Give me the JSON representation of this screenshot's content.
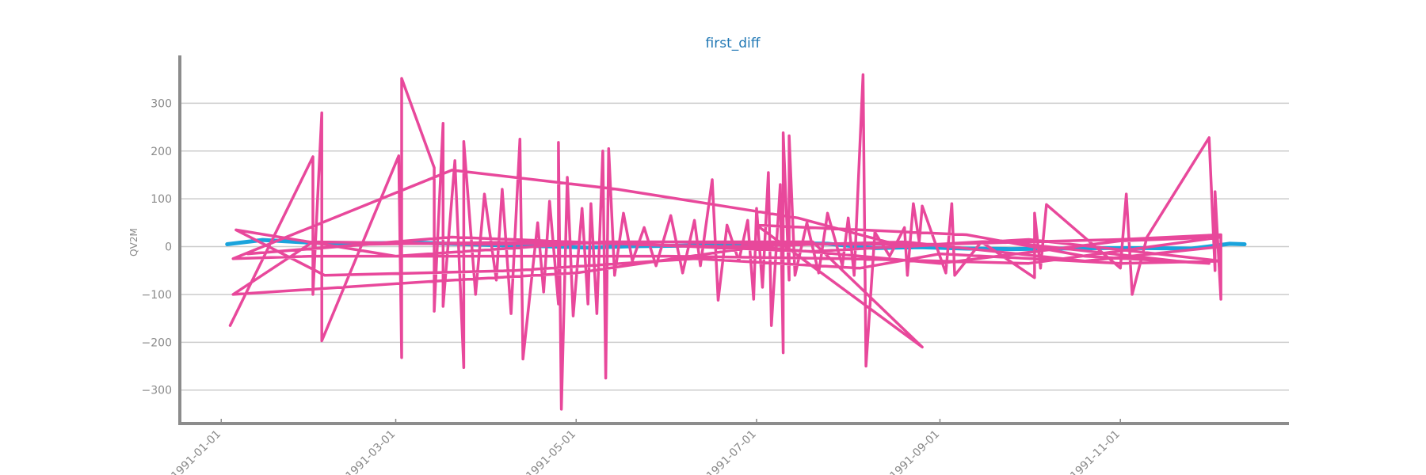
{
  "chart_data": {
    "type": "line",
    "title": "first_diff",
    "xlabel": "",
    "ylabel": "QV2M",
    "x_range": [
      "1990-12-18",
      "1991-12-28"
    ],
    "ylim": [
      -370,
      400
    ],
    "y_ticks": [
      -300,
      -200,
      -100,
      0,
      100,
      200,
      300
    ],
    "y_tick_labels": [
      "−300",
      "−200",
      "−100",
      "0",
      "100",
      "200",
      "300"
    ],
    "x_ticks": [
      "1991-01-01",
      "1991-03-01",
      "1991-05-01",
      "1991-07-01",
      "1991-09-01",
      "1991-11-01"
    ],
    "grid": "horizontal",
    "colors": {
      "title": "#1f77b4",
      "axis": "#8c8c8c",
      "grid": "#cccccc",
      "tick_text": "#8a8a8a"
    },
    "series": [
      {
        "color": "#1aa3dc",
        "width": 5,
        "points": [
          [
            "1991-01-03",
            5
          ],
          [
            "1991-01-15",
            14
          ],
          [
            "1991-02-01",
            8
          ],
          [
            "1991-02-20",
            7
          ],
          [
            "1991-03-10",
            8
          ],
          [
            "1991-03-25",
            5
          ],
          [
            "1991-04-05",
            3
          ],
          [
            "1991-04-20",
            1
          ],
          [
            "1991-05-05",
            -2
          ],
          [
            "1991-05-20",
            1
          ],
          [
            "1991-06-05",
            2
          ],
          [
            "1991-06-20",
            4
          ],
          [
            "1991-07-05",
            8
          ],
          [
            "1991-07-25",
            6
          ],
          [
            "1991-08-10",
            -3
          ],
          [
            "1991-08-25",
            -1
          ],
          [
            "1991-09-10",
            -4
          ],
          [
            "1991-09-25",
            -5
          ],
          [
            "1991-10-10",
            -4
          ],
          [
            "1991-10-25",
            -3
          ],
          [
            "1991-11-10",
            -3
          ],
          [
            "1991-11-25",
            -4
          ],
          [
            "1991-12-08",
            6
          ],
          [
            "1991-12-13",
            5
          ]
        ]
      },
      {
        "color": "#e8489b",
        "width": 3.5,
        "points": [
          [
            "1991-01-04",
            -165
          ],
          [
            "1991-02-01",
            188
          ],
          [
            "1991-02-01",
            -100
          ],
          [
            "1991-02-04",
            280
          ],
          [
            "1991-02-04",
            -197
          ],
          [
            "1991-03-02",
            190
          ],
          [
            "1991-03-03",
            -232
          ],
          [
            "1991-03-03",
            352
          ],
          [
            "1991-03-14",
            165
          ],
          [
            "1991-03-14",
            -135
          ],
          [
            "1991-03-17",
            258
          ],
          [
            "1991-03-17",
            -125
          ],
          [
            "1991-03-21",
            180
          ],
          [
            "1991-03-24",
            -253
          ],
          [
            "1991-03-24",
            220
          ],
          [
            "1991-03-28",
            -100
          ],
          [
            "1991-03-31",
            110
          ],
          [
            "1991-04-04",
            -70
          ],
          [
            "1991-04-06",
            120
          ],
          [
            "1991-04-09",
            -140
          ],
          [
            "1991-04-12",
            225
          ],
          [
            "1991-04-13",
            -235
          ],
          [
            "1991-04-18",
            50
          ],
          [
            "1991-04-20",
            -95
          ],
          [
            "1991-04-22",
            95
          ],
          [
            "1991-04-25",
            -120
          ],
          [
            "1991-04-25",
            218
          ],
          [
            "1991-04-26",
            -340
          ],
          [
            "1991-04-28",
            145
          ],
          [
            "1991-04-30",
            -145
          ],
          [
            "1991-05-03",
            80
          ],
          [
            "1991-05-05",
            -120
          ],
          [
            "1991-05-06",
            90
          ],
          [
            "1991-05-08",
            -140
          ],
          [
            "1991-05-10",
            200
          ],
          [
            "1991-05-11",
            -275
          ],
          [
            "1991-05-12",
            205
          ],
          [
            "1991-05-14",
            -60
          ],
          [
            "1991-05-17",
            70
          ],
          [
            "1991-05-20",
            -30
          ],
          [
            "1991-05-24",
            40
          ],
          [
            "1991-05-28",
            -40
          ],
          [
            "1991-06-02",
            65
          ],
          [
            "1991-06-06",
            -55
          ],
          [
            "1991-06-10",
            55
          ],
          [
            "1991-06-12",
            -40
          ],
          [
            "1991-06-16",
            140
          ],
          [
            "1991-06-18",
            -112
          ],
          [
            "1991-06-21",
            45
          ],
          [
            "1991-06-25",
            -30
          ],
          [
            "1991-06-28",
            55
          ],
          [
            "1991-06-30",
            -110
          ],
          [
            "1991-07-01",
            80
          ],
          [
            "1991-07-03",
            -85
          ],
          [
            "1991-07-05",
            155
          ],
          [
            "1991-07-06",
            -165
          ],
          [
            "1991-07-09",
            130
          ],
          [
            "1991-07-10",
            -222
          ],
          [
            "1991-07-10",
            238
          ],
          [
            "1991-07-12",
            -70
          ],
          [
            "1991-07-12",
            232
          ],
          [
            "1991-07-14",
            -60
          ],
          [
            "1991-07-18",
            50
          ],
          [
            "1991-07-22",
            -55
          ],
          [
            "1991-07-25",
            70
          ],
          [
            "1991-07-30",
            -40
          ],
          [
            "1991-08-01",
            60
          ],
          [
            "1991-08-03",
            -60
          ],
          [
            "1991-08-06",
            360
          ],
          [
            "1991-08-07",
            -250
          ],
          [
            "1991-08-10",
            30
          ],
          [
            "1991-08-15",
            -20
          ],
          [
            "1991-08-20",
            40
          ],
          [
            "1991-08-21",
            -60
          ],
          [
            "1991-08-23",
            90
          ],
          [
            "1991-08-25",
            10
          ],
          [
            "1991-08-26",
            85
          ],
          [
            "1991-09-03",
            -55
          ],
          [
            "1991-09-05",
            90
          ],
          [
            "1991-09-06",
            -60
          ],
          [
            "1991-09-15",
            10
          ],
          [
            "1991-10-03",
            -65
          ],
          [
            "1991-10-03",
            70
          ],
          [
            "1991-10-05",
            -45
          ],
          [
            "1991-10-07",
            88
          ],
          [
            "1991-11-01",
            -45
          ],
          [
            "1991-11-03",
            110
          ],
          [
            "1991-11-05",
            -100
          ],
          [
            "1991-11-10",
            20
          ],
          [
            "1991-12-01",
            228
          ],
          [
            "1991-12-03",
            -50
          ],
          [
            "1991-12-03",
            115
          ],
          [
            "1991-12-05",
            -110
          ],
          [
            "1991-12-05",
            25
          ],
          [
            "1991-11-01",
            15
          ],
          [
            "1991-10-01",
            10
          ],
          [
            "1991-09-01",
            5
          ],
          [
            "1991-08-01",
            5
          ],
          [
            "1991-06-01",
            10
          ],
          [
            "1991-04-01",
            5
          ],
          [
            "1991-02-01",
            10
          ],
          [
            "1991-01-05",
            -100
          ],
          [
            "1991-03-15",
            -72
          ],
          [
            "1991-05-01",
            -55
          ],
          [
            "1991-07-01",
            0
          ],
          [
            "1991-09-01",
            -35
          ],
          [
            "1991-11-01",
            12
          ],
          [
            "1991-12-05",
            20
          ],
          [
            "1991-10-01",
            -35
          ],
          [
            "1991-08-01",
            -25
          ],
          [
            "1991-06-01",
            -20
          ],
          [
            "1991-04-01",
            -20
          ],
          [
            "1991-02-01",
            -20
          ],
          [
            "1991-01-05",
            -25
          ],
          [
            "1991-03-20",
            160
          ],
          [
            "1991-05-15",
            120
          ],
          [
            "1991-07-15",
            60
          ],
          [
            "1991-08-20",
            0
          ],
          [
            "1991-10-01",
            15
          ],
          [
            "1991-12-05",
            -30
          ],
          [
            "1991-11-01",
            -35
          ],
          [
            "1991-09-01",
            -15
          ],
          [
            "1991-08-05",
            -45
          ],
          [
            "1991-06-10",
            -25
          ],
          [
            "1991-04-10",
            -50
          ],
          [
            "1991-02-05",
            -60
          ],
          [
            "1991-01-06",
            35
          ],
          [
            "1991-03-01",
            -20
          ],
          [
            "1991-05-10",
            10
          ],
          [
            "1991-07-20",
            10
          ],
          [
            "1991-08-26",
            -210
          ],
          [
            "1991-07-01",
            45
          ],
          [
            "1991-09-10",
            25
          ],
          [
            "1991-10-20",
            -20
          ],
          [
            "1991-12-01",
            -35
          ],
          [
            "1991-11-20",
            -30
          ],
          [
            "1991-09-20",
            12
          ],
          [
            "1991-07-20",
            -10
          ],
          [
            "1991-05-20",
            5
          ],
          [
            "1991-03-20",
            20
          ],
          [
            "1991-01-10",
            -15
          ],
          [
            "1991-02-20",
            5
          ],
          [
            "1991-04-20",
            10
          ],
          [
            "1991-06-20",
            0
          ],
          [
            "1991-08-20",
            10
          ],
          [
            "1991-10-20",
            -30
          ],
          [
            "1991-12-05",
            0
          ]
        ]
      }
    ]
  }
}
